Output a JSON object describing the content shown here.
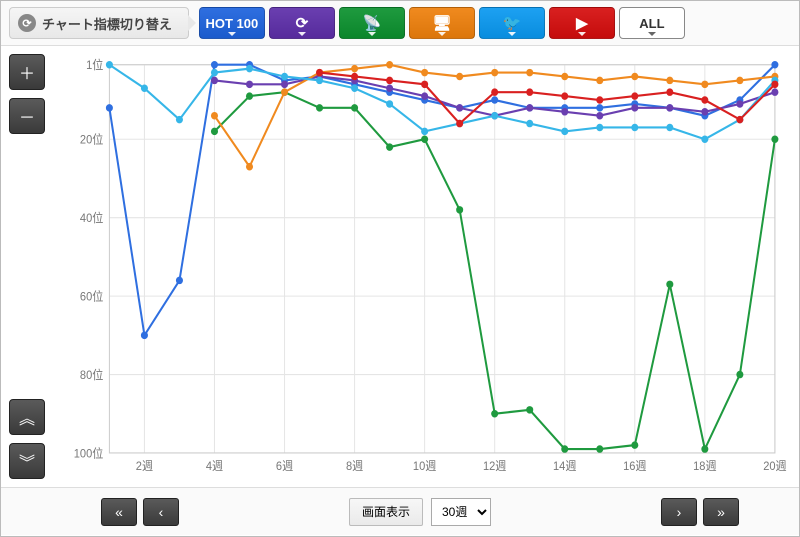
{
  "toolbar": {
    "switch_label": "チャート指標切り替え",
    "tabs": [
      {
        "key": "hot100",
        "label": "HOT 100",
        "color": "#2f6fe0",
        "icon": ""
      },
      {
        "key": "download",
        "label": "",
        "color": "#6a3fb0",
        "icon": "⟳"
      },
      {
        "key": "radio",
        "label": "",
        "color": "#1f9a3f",
        "icon": "📡"
      },
      {
        "key": "lookup",
        "label": "",
        "color": "#f08a1f",
        "icon": "🖥"
      },
      {
        "key": "twitter",
        "label": "",
        "color": "#1da1f2",
        "icon": "🐦"
      },
      {
        "key": "youtube",
        "label": "",
        "color": "#d92020",
        "icon": "▶"
      },
      {
        "key": "all",
        "label": "ALL",
        "color": "#ffffff",
        "icon": ""
      }
    ]
  },
  "bottom": {
    "display_label": "画面表示",
    "range_value": "30週"
  },
  "chart": {
    "type": "line",
    "background_color": "#ffffff",
    "grid_color": "#e5e5e5",
    "axis_label_color": "#777777",
    "x": {
      "min": 1,
      "max": 20,
      "ticks": [
        2,
        4,
        6,
        8,
        10,
        12,
        14,
        16,
        18,
        20
      ],
      "tick_suffix": "週"
    },
    "y": {
      "min": 1,
      "max": 100,
      "ticks": [
        1,
        20,
        40,
        60,
        80,
        100
      ],
      "tick_suffix": "位",
      "inverted": true
    },
    "series": [
      {
        "name": "blue",
        "color": "#2f6fe0",
        "points": [
          [
            1,
            12
          ],
          [
            2,
            70
          ],
          [
            3,
            56
          ],
          [
            4,
            1
          ],
          [
            5,
            1
          ],
          [
            6,
            5
          ],
          [
            7,
            4
          ],
          [
            8,
            6
          ],
          [
            9,
            8
          ],
          [
            10,
            10
          ],
          [
            11,
            12
          ],
          [
            12,
            10
          ],
          [
            13,
            12
          ],
          [
            14,
            12
          ],
          [
            15,
            12
          ],
          [
            16,
            11
          ],
          [
            17,
            12
          ],
          [
            18,
            14
          ],
          [
            19,
            10
          ],
          [
            20,
            1
          ]
        ]
      },
      {
        "name": "purple",
        "color": "#6a3fb0",
        "points": [
          [
            4,
            5
          ],
          [
            5,
            6
          ],
          [
            6,
            6
          ],
          [
            7,
            4
          ],
          [
            8,
            5
          ],
          [
            9,
            7
          ],
          [
            10,
            9
          ],
          [
            11,
            12
          ],
          [
            12,
            14
          ],
          [
            13,
            12
          ],
          [
            14,
            13
          ],
          [
            15,
            14
          ],
          [
            16,
            12
          ],
          [
            17,
            12
          ],
          [
            18,
            13
          ],
          [
            19,
            11
          ],
          [
            20,
            8
          ]
        ]
      },
      {
        "name": "green",
        "color": "#1f9a3f",
        "points": [
          [
            4,
            18
          ],
          [
            5,
            9
          ],
          [
            6,
            8
          ],
          [
            7,
            12
          ],
          [
            8,
            12
          ],
          [
            9,
            22
          ],
          [
            10,
            20
          ],
          [
            11,
            38
          ],
          [
            12,
            90
          ],
          [
            13,
            89
          ],
          [
            14,
            99
          ],
          [
            15,
            99
          ],
          [
            16,
            98
          ],
          [
            17,
            57
          ],
          [
            18,
            99
          ],
          [
            19,
            80
          ],
          [
            20,
            20
          ]
        ]
      },
      {
        "name": "orange",
        "color": "#f08a1f",
        "points": [
          [
            4,
            14
          ],
          [
            5,
            27
          ],
          [
            6,
            8
          ],
          [
            7,
            3
          ],
          [
            8,
            2
          ],
          [
            9,
            1
          ],
          [
            10,
            3
          ],
          [
            11,
            4
          ],
          [
            12,
            3
          ],
          [
            13,
            3
          ],
          [
            14,
            4
          ],
          [
            15,
            5
          ],
          [
            16,
            4
          ],
          [
            17,
            5
          ],
          [
            18,
            6
          ],
          [
            19,
            5
          ],
          [
            20,
            4
          ]
        ]
      },
      {
        "name": "skyblue",
        "color": "#36b6e8",
        "points": [
          [
            1,
            1
          ],
          [
            2,
            7
          ],
          [
            3,
            15
          ],
          [
            4,
            3
          ],
          [
            5,
            2
          ],
          [
            6,
            4
          ],
          [
            7,
            5
          ],
          [
            8,
            7
          ],
          [
            9,
            11
          ],
          [
            10,
            18
          ],
          [
            11,
            16
          ],
          [
            12,
            14
          ],
          [
            13,
            16
          ],
          [
            14,
            18
          ],
          [
            15,
            17
          ],
          [
            16,
            17
          ],
          [
            17,
            17
          ],
          [
            18,
            20
          ],
          [
            19,
            15
          ],
          [
            20,
            5
          ]
        ]
      },
      {
        "name": "red",
        "color": "#d92020",
        "points": [
          [
            7,
            3
          ],
          [
            8,
            4
          ],
          [
            9,
            5
          ],
          [
            10,
            6
          ],
          [
            11,
            16
          ],
          [
            12,
            8
          ],
          [
            13,
            8
          ],
          [
            14,
            9
          ],
          [
            15,
            10
          ],
          [
            16,
            9
          ],
          [
            17,
            8
          ],
          [
            18,
            10
          ],
          [
            19,
            15
          ],
          [
            20,
            6
          ]
        ]
      }
    ]
  }
}
